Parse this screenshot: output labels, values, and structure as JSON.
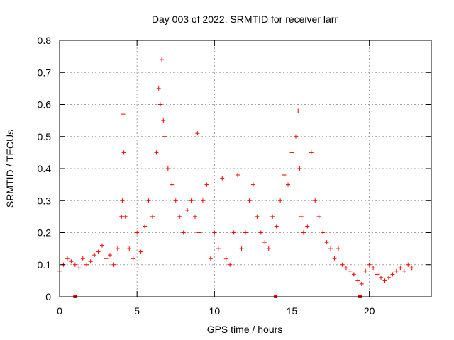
{
  "chart_data": {
    "type": "scatter",
    "title": "Day 003 of 2022, SRMTID for receiver larr",
    "xlabel": "GPS time / hours",
    "ylabel": "SRMTID / TECUs",
    "xlim": [
      0,
      24
    ],
    "ylim": [
      0,
      0.8
    ],
    "xticks": [
      0,
      5,
      10,
      15,
      20
    ],
    "yticks": [
      0,
      0.1,
      0.2,
      0.3,
      0.4,
      0.5,
      0.6,
      0.7,
      0.8
    ],
    "xtick_labels": [
      "0",
      "5",
      "10",
      "15",
      "20"
    ],
    "ytick_labels": [
      "0",
      "0.1",
      "0.2",
      "0.3",
      "0.4",
      "0.5",
      "0.6",
      "0.7",
      "0.8"
    ],
    "grid": true,
    "marker": "+",
    "color": "#ff0000",
    "series": [
      {
        "name": "SRMTID",
        "x": [
          0.0,
          0.25,
          0.5,
          0.75,
          1.0,
          1.25,
          1.5,
          1.75,
          2.0,
          2.25,
          2.5,
          2.75,
          3.0,
          3.25,
          3.5,
          3.75,
          4.0,
          4.05,
          4.1,
          4.15,
          4.25,
          4.5,
          4.75,
          5.0,
          5.25,
          5.5,
          5.75,
          6.0,
          6.25,
          6.4,
          6.5,
          6.6,
          6.7,
          6.8,
          7.0,
          7.25,
          7.5,
          7.75,
          8.0,
          8.25,
          8.5,
          8.75,
          8.9,
          9.0,
          9.25,
          9.5,
          9.75,
          10.0,
          10.25,
          10.5,
          10.75,
          11.0,
          11.25,
          11.5,
          11.75,
          12.0,
          12.25,
          12.5,
          12.75,
          13.0,
          13.25,
          13.5,
          13.75,
          14.0,
          14.25,
          14.5,
          14.75,
          15.0,
          15.25,
          15.4,
          15.5,
          15.6,
          15.75,
          16.0,
          16.25,
          16.5,
          16.75,
          17.0,
          17.25,
          17.5,
          17.75,
          18.0,
          18.25,
          18.5,
          18.75,
          19.0,
          19.25,
          19.5,
          19.75,
          20.0,
          20.25,
          20.5,
          20.75,
          21.0,
          21.25,
          21.5,
          21.75,
          22.0,
          22.25,
          22.5,
          22.75
        ],
        "y": [
          0.08,
          0.1,
          0.12,
          0.11,
          0.1,
          0.09,
          0.12,
          0.1,
          0.11,
          0.13,
          0.14,
          0.16,
          0.12,
          0.13,
          0.1,
          0.15,
          0.25,
          0.3,
          0.57,
          0.45,
          0.25,
          0.15,
          0.12,
          0.2,
          0.14,
          0.22,
          0.3,
          0.25,
          0.45,
          0.65,
          0.6,
          0.74,
          0.55,
          0.5,
          0.4,
          0.35,
          0.3,
          0.25,
          0.2,
          0.27,
          0.3,
          0.25,
          0.51,
          0.2,
          0.3,
          0.35,
          0.12,
          0.2,
          0.15,
          0.37,
          0.12,
          0.1,
          0.2,
          0.38,
          0.15,
          0.2,
          0.3,
          0.35,
          0.25,
          0.2,
          0.17,
          0.15,
          0.25,
          0.22,
          0.3,
          0.38,
          0.35,
          0.45,
          0.5,
          0.58,
          0.4,
          0.25,
          0.2,
          0.22,
          0.45,
          0.3,
          0.25,
          0.2,
          0.17,
          0.15,
          0.12,
          0.15,
          0.1,
          0.09,
          0.08,
          0.07,
          0.05,
          0.04,
          0.08,
          0.1,
          0.09,
          0.07,
          0.06,
          0.05,
          0.06,
          0.07,
          0.08,
          0.09,
          0.08,
          0.1,
          0.09
        ]
      }
    ],
    "bottom_markers_x": [
      1.0,
      13.95,
      19.4
    ]
  }
}
